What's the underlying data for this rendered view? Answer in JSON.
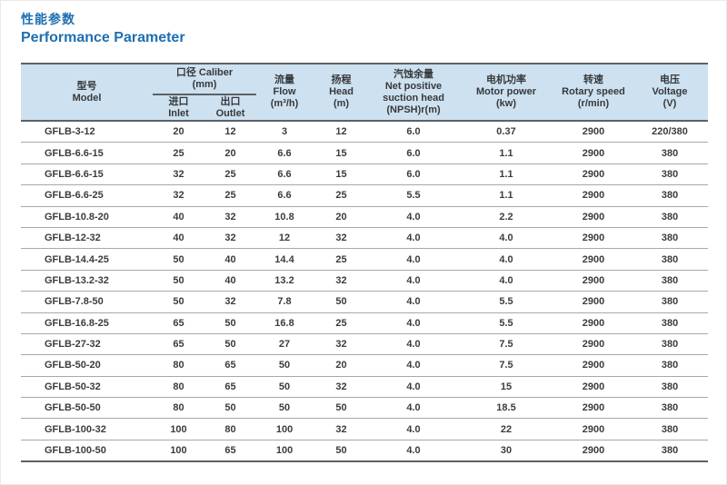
{
  "page": {
    "title_zh": "性能参数",
    "title_en": "Performance Parameter"
  },
  "colors": {
    "title_blue": "#1e6fb2",
    "header_bg": "#cde1f0",
    "border_dark": "#5b6267",
    "row_line": "#a8a8a8",
    "text": "#3c3c3c"
  },
  "table": {
    "header": {
      "model": {
        "zh": "型号",
        "en": "Model"
      },
      "caliber": {
        "zh": "口径 Caliber",
        "unit": "(mm)"
      },
      "inlet": {
        "zh": "进口",
        "en": "Inlet"
      },
      "outlet": {
        "zh": "出口",
        "en": "Outlet"
      },
      "flow": {
        "zh": "流量",
        "en": "Flow",
        "unit": "(m³/h)"
      },
      "head": {
        "zh": "扬程",
        "en": "Head",
        "unit": "(m)"
      },
      "npsh": {
        "zh": "汽蚀余量",
        "en1": "Net positive",
        "en2": "suction head",
        "unit": "(NPSH)r(m)"
      },
      "motor": {
        "zh": "电机功率",
        "en": "Motor power",
        "unit": "(kw)"
      },
      "rotary": {
        "zh": "转速",
        "en": "Rotary speed",
        "unit": "(r/min)"
      },
      "voltage": {
        "zh": "电压",
        "en": "Voltage",
        "unit": "(V)"
      }
    },
    "rows": [
      [
        "GFLB-3-12",
        "20",
        "12",
        "3",
        "12",
        "6.0",
        "0.37",
        "2900",
        "220/380"
      ],
      [
        "GFLB-6.6-15",
        "25",
        "20",
        "6.6",
        "15",
        "6.0",
        "1.1",
        "2900",
        "380"
      ],
      [
        "GFLB-6.6-15",
        "32",
        "25",
        "6.6",
        "15",
        "6.0",
        "1.1",
        "2900",
        "380"
      ],
      [
        "GFLB-6.6-25",
        "32",
        "25",
        "6.6",
        "25",
        "5.5",
        "1.1",
        "2900",
        "380"
      ],
      [
        "GFLB-10.8-20",
        "40",
        "32",
        "10.8",
        "20",
        "4.0",
        "2.2",
        "2900",
        "380"
      ],
      [
        "GFLB-12-32",
        "40",
        "32",
        "12",
        "32",
        "4.0",
        "4.0",
        "2900",
        "380"
      ],
      [
        "GFLB-14.4-25",
        "50",
        "40",
        "14.4",
        "25",
        "4.0",
        "4.0",
        "2900",
        "380"
      ],
      [
        "GFLB-13.2-32",
        "50",
        "40",
        "13.2",
        "32",
        "4.0",
        "4.0",
        "2900",
        "380"
      ],
      [
        "GFLB-7.8-50",
        "50",
        "32",
        "7.8",
        "50",
        "4.0",
        "5.5",
        "2900",
        "380"
      ],
      [
        "GFLB-16.8-25",
        "65",
        "50",
        "16.8",
        "25",
        "4.0",
        "5.5",
        "2900",
        "380"
      ],
      [
        "GFLB-27-32",
        "65",
        "50",
        "27",
        "32",
        "4.0",
        "7.5",
        "2900",
        "380"
      ],
      [
        "GFLB-50-20",
        "80",
        "65",
        "50",
        "20",
        "4.0",
        "7.5",
        "2900",
        "380"
      ],
      [
        "GFLB-50-32",
        "80",
        "65",
        "50",
        "32",
        "4.0",
        "15",
        "2900",
        "380"
      ],
      [
        "GFLB-50-50",
        "80",
        "50",
        "50",
        "50",
        "4.0",
        "18.5",
        "2900",
        "380"
      ],
      [
        "GFLB-100-32",
        "100",
        "80",
        "100",
        "32",
        "4.0",
        "22",
        "2900",
        "380"
      ],
      [
        "GFLB-100-50",
        "100",
        "65",
        "100",
        "50",
        "4.0",
        "30",
        "2900",
        "380"
      ]
    ]
  }
}
